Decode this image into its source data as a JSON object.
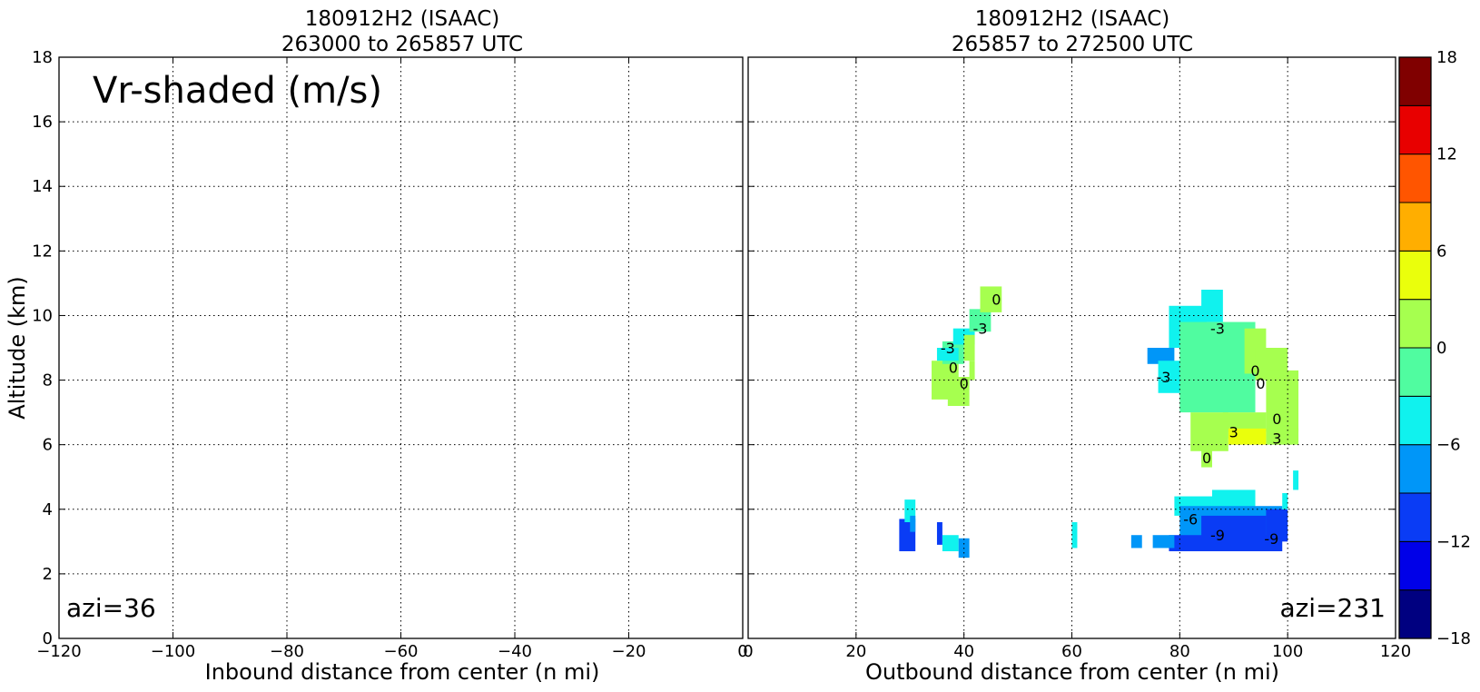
{
  "figure": {
    "shading_label": "Vr-shaded (m/s)",
    "ylabel": "Altitude (km)"
  },
  "chart_data": [
    {
      "type": "heatmap",
      "title_line1": "180912H2 (ISAAC)",
      "title_line2": "263000 to 265857 UTC",
      "xlabel": "Inbound distance from center (n mi)",
      "ylabel": "Altitude (km)",
      "xlim": [
        -120,
        0
      ],
      "ylim": [
        0,
        18
      ],
      "xticks": [
        "−120",
        "−100",
        "−80",
        "−60",
        "−40",
        "−20",
        "0"
      ],
      "yticks": [
        "0",
        "2",
        "4",
        "6",
        "8",
        "10",
        "12",
        "14",
        "16",
        "18"
      ],
      "grid": true,
      "annotation": "azi=36",
      "cells": []
    },
    {
      "type": "heatmap",
      "title_line1": "180912H2 (ISAAC)",
      "title_line2": "265857 to 272500 UTC",
      "xlabel": "Outbound distance from center (n mi)",
      "xlim": [
        0,
        120
      ],
      "ylim": [
        0,
        18
      ],
      "xticks": [
        "0",
        "20",
        "40",
        "60",
        "80",
        "100",
        "120"
      ],
      "grid": true,
      "annotation": "azi=231",
      "cells": [
        {
          "x0": 34,
          "x1": 39,
          "y0": 7.4,
          "y1": 8.6,
          "v": 1.5
        },
        {
          "x0": 37,
          "x1": 41,
          "y0": 7.2,
          "y1": 8.1,
          "v": 1.5
        },
        {
          "x0": 36,
          "x1": 40,
          "y0": 8.5,
          "y1": 9.2,
          "v": -1.5
        },
        {
          "x0": 35,
          "x1": 39,
          "y0": 8.6,
          "y1": 9.0,
          "v": -4.5
        },
        {
          "x0": 38,
          "x1": 42,
          "y0": 9.1,
          "y1": 9.6,
          "v": -4.5
        },
        {
          "x0": 41,
          "x1": 45,
          "y0": 9.5,
          "y1": 10.2,
          "v": -1.5
        },
        {
          "x0": 43,
          "x1": 47,
          "y0": 10.1,
          "y1": 10.9,
          "v": 1.5
        },
        {
          "x0": 40,
          "x1": 42,
          "y0": 8.6,
          "y1": 9.4,
          "v": 1.5
        },
        {
          "x0": 41,
          "x1": 42,
          "y0": 8.0,
          "y1": 8.6,
          "v": 1.5
        },
        {
          "x0": 78,
          "x1": 85,
          "y0": 9.0,
          "y1": 10.3,
          "v": -4.5
        },
        {
          "x0": 84,
          "x1": 88,
          "y0": 9.8,
          "y1": 10.8,
          "v": -4.5
        },
        {
          "x0": 74,
          "x1": 79,
          "y0": 8.5,
          "y1": 9.0,
          "v": -7.5
        },
        {
          "x0": 76,
          "x1": 81,
          "y0": 7.6,
          "y1": 8.6,
          "v": -4.5
        },
        {
          "x0": 80,
          "x1": 94,
          "y0": 7.0,
          "y1": 9.8,
          "v": -1.5
        },
        {
          "x0": 92,
          "x1": 96,
          "y0": 8.2,
          "y1": 9.6,
          "v": 1.5
        },
        {
          "x0": 94,
          "x1": 100,
          "y0": 8.0,
          "y1": 9.0,
          "v": 1.5
        },
        {
          "x0": 96,
          "x1": 102,
          "y0": 6.4,
          "y1": 8.3,
          "v": 1.5
        },
        {
          "x0": 88,
          "x1": 96,
          "y0": 6.4,
          "y1": 7.0,
          "v": 1.5
        },
        {
          "x0": 82,
          "x1": 89,
          "y0": 5.8,
          "y1": 7.0,
          "v": 1.5
        },
        {
          "x0": 84,
          "x1": 86,
          "y0": 5.3,
          "y1": 5.9,
          "v": 1.5
        },
        {
          "x0": 96,
          "x1": 102,
          "y0": 6.0,
          "y1": 6.5,
          "v": 1.5
        },
        {
          "x0": 89,
          "x1": 96,
          "y0": 6.0,
          "y1": 6.5,
          "v": 4.5
        },
        {
          "x0": 88,
          "x1": 89,
          "y0": 6.2,
          "y1": 6.7,
          "v": 1.5
        },
        {
          "x0": 79,
          "x1": 86,
          "y0": 3.8,
          "y1": 4.4,
          "v": -4.5
        },
        {
          "x0": 86,
          "x1": 94,
          "y0": 4.0,
          "y1": 4.6,
          "v": -4.5
        },
        {
          "x0": 80,
          "x1": 99,
          "y0": 3.1,
          "y1": 4.1,
          "v": -7.5
        },
        {
          "x0": 78,
          "x1": 99,
          "y0": 2.7,
          "y1": 3.2,
          "v": -10.5
        },
        {
          "x0": 84,
          "x1": 96,
          "y0": 3.0,
          "y1": 3.8,
          "v": -10.5
        },
        {
          "x0": 96,
          "x1": 100,
          "y0": 3.0,
          "y1": 4.0,
          "v": -10.5
        },
        {
          "x0": 99,
          "x1": 100,
          "y0": 4.0,
          "y1": 4.5,
          "v": -4.5
        },
        {
          "x0": 101,
          "x1": 102,
          "y0": 4.6,
          "y1": 5.2,
          "v": -4.5
        },
        {
          "x0": 75,
          "x1": 79,
          "y0": 2.8,
          "y1": 3.2,
          "v": -7.5
        },
        {
          "x0": 71,
          "x1": 73,
          "y0": 2.8,
          "y1": 3.2,
          "v": -7.5
        },
        {
          "x0": 28,
          "x1": 31,
          "y0": 2.7,
          "y1": 3.7,
          "v": -10.5
        },
        {
          "x0": 29,
          "x1": 31,
          "y0": 3.6,
          "y1": 4.3,
          "v": -4.5
        },
        {
          "x0": 30,
          "x1": 31,
          "y0": 3.3,
          "y1": 3.8,
          "v": -7.5
        },
        {
          "x0": 35,
          "x1": 36,
          "y0": 2.9,
          "y1": 3.6,
          "v": -10.5
        },
        {
          "x0": 36,
          "x1": 39,
          "y0": 2.7,
          "y1": 3.2,
          "v": -4.5
        },
        {
          "x0": 39,
          "x1": 41,
          "y0": 2.5,
          "y1": 3.1,
          "v": -7.5
        },
        {
          "x0": 60,
          "x1": 61,
          "y0": 2.8,
          "y1": 3.6,
          "v": -4.5
        }
      ],
      "contour_labels": [
        {
          "text": "0",
          "x": 46,
          "y": 10.5
        },
        {
          "text": "-3",
          "x": 43,
          "y": 9.6
        },
        {
          "text": "-3",
          "x": 37,
          "y": 9.0
        },
        {
          "text": "0",
          "x": 38,
          "y": 8.4
        },
        {
          "text": "0",
          "x": 40,
          "y": 7.9
        },
        {
          "text": "-3",
          "x": 87,
          "y": 9.6
        },
        {
          "text": "-3",
          "x": 77,
          "y": 8.1
        },
        {
          "text": "0",
          "x": 94,
          "y": 8.3
        },
        {
          "text": "0",
          "x": 95,
          "y": 7.9
        },
        {
          "text": "0",
          "x": 98,
          "y": 6.8
        },
        {
          "text": "3",
          "x": 90,
          "y": 6.4
        },
        {
          "text": "3",
          "x": 98,
          "y": 6.2
        },
        {
          "text": "0",
          "x": 85,
          "y": 5.6
        },
        {
          "text": "-6",
          "x": 82,
          "y": 3.7
        },
        {
          "text": "-9",
          "x": 87,
          "y": 3.2
        },
        {
          "text": "-9",
          "x": 97,
          "y": 3.1
        }
      ]
    }
  ],
  "colorbar": {
    "ticks": [
      "18",
      "12",
      "6",
      "0",
      "−6",
      "−12",
      "−18"
    ],
    "range": [
      -18,
      18
    ],
    "bins": [
      {
        "lo": -18,
        "hi": -15,
        "color": "#000080"
      },
      {
        "lo": -15,
        "hi": -12,
        "color": "#0000e8"
      },
      {
        "lo": -12,
        "hi": -9,
        "color": "#0a3cf5"
      },
      {
        "lo": -9,
        "hi": -6,
        "color": "#0096f8"
      },
      {
        "lo": -6,
        "hi": -3,
        "color": "#10f2ee"
      },
      {
        "lo": -3,
        "hi": 0,
        "color": "#50fca0"
      },
      {
        "lo": 0,
        "hi": 3,
        "color": "#a6ff4f"
      },
      {
        "lo": 3,
        "hi": 6,
        "color": "#eaff0c"
      },
      {
        "lo": 6,
        "hi": 9,
        "color": "#ffae00"
      },
      {
        "lo": 9,
        "hi": 12,
        "color": "#ff5500"
      },
      {
        "lo": 12,
        "hi": 15,
        "color": "#e80000"
      },
      {
        "lo": 15,
        "hi": 18,
        "color": "#800000"
      }
    ]
  }
}
